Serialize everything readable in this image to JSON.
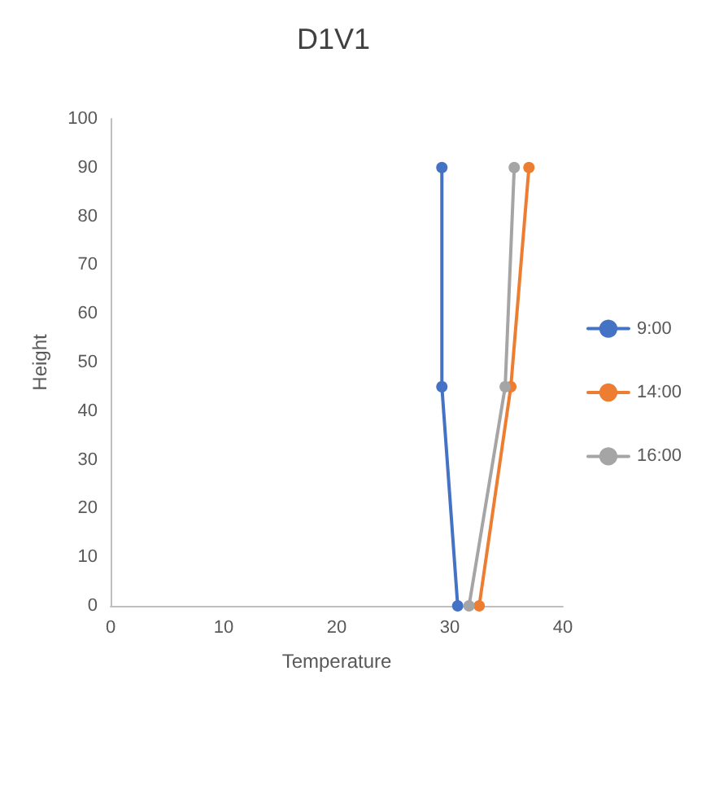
{
  "chart_data": {
    "type": "line",
    "title": "D1V1",
    "xlabel": "Temperature",
    "ylabel": "Height",
    "xlim": [
      0,
      40
    ],
    "xticks": [
      0,
      10,
      20,
      30,
      40
    ],
    "ylim": [
      0,
      100
    ],
    "yticks": [
      0,
      10,
      20,
      30,
      40,
      50,
      60,
      70,
      80,
      90,
      100
    ],
    "grid": false,
    "legend": "right",
    "marker": "circle",
    "line_style": "solid",
    "series": [
      {
        "name": "9:00",
        "color": "#4472c4",
        "x": [
          30.7,
          29.3,
          29.3
        ],
        "values": [
          0,
          45,
          90
        ]
      },
      {
        "name": "14:00",
        "color": "#ed7d31",
        "x": [
          32.6,
          35.4,
          37.0
        ],
        "values": [
          0,
          45,
          90
        ]
      },
      {
        "name": "16:00",
        "color": "#a5a5a5",
        "x": [
          31.7,
          34.9,
          35.7
        ],
        "values": [
          0,
          45,
          90
        ]
      }
    ]
  }
}
